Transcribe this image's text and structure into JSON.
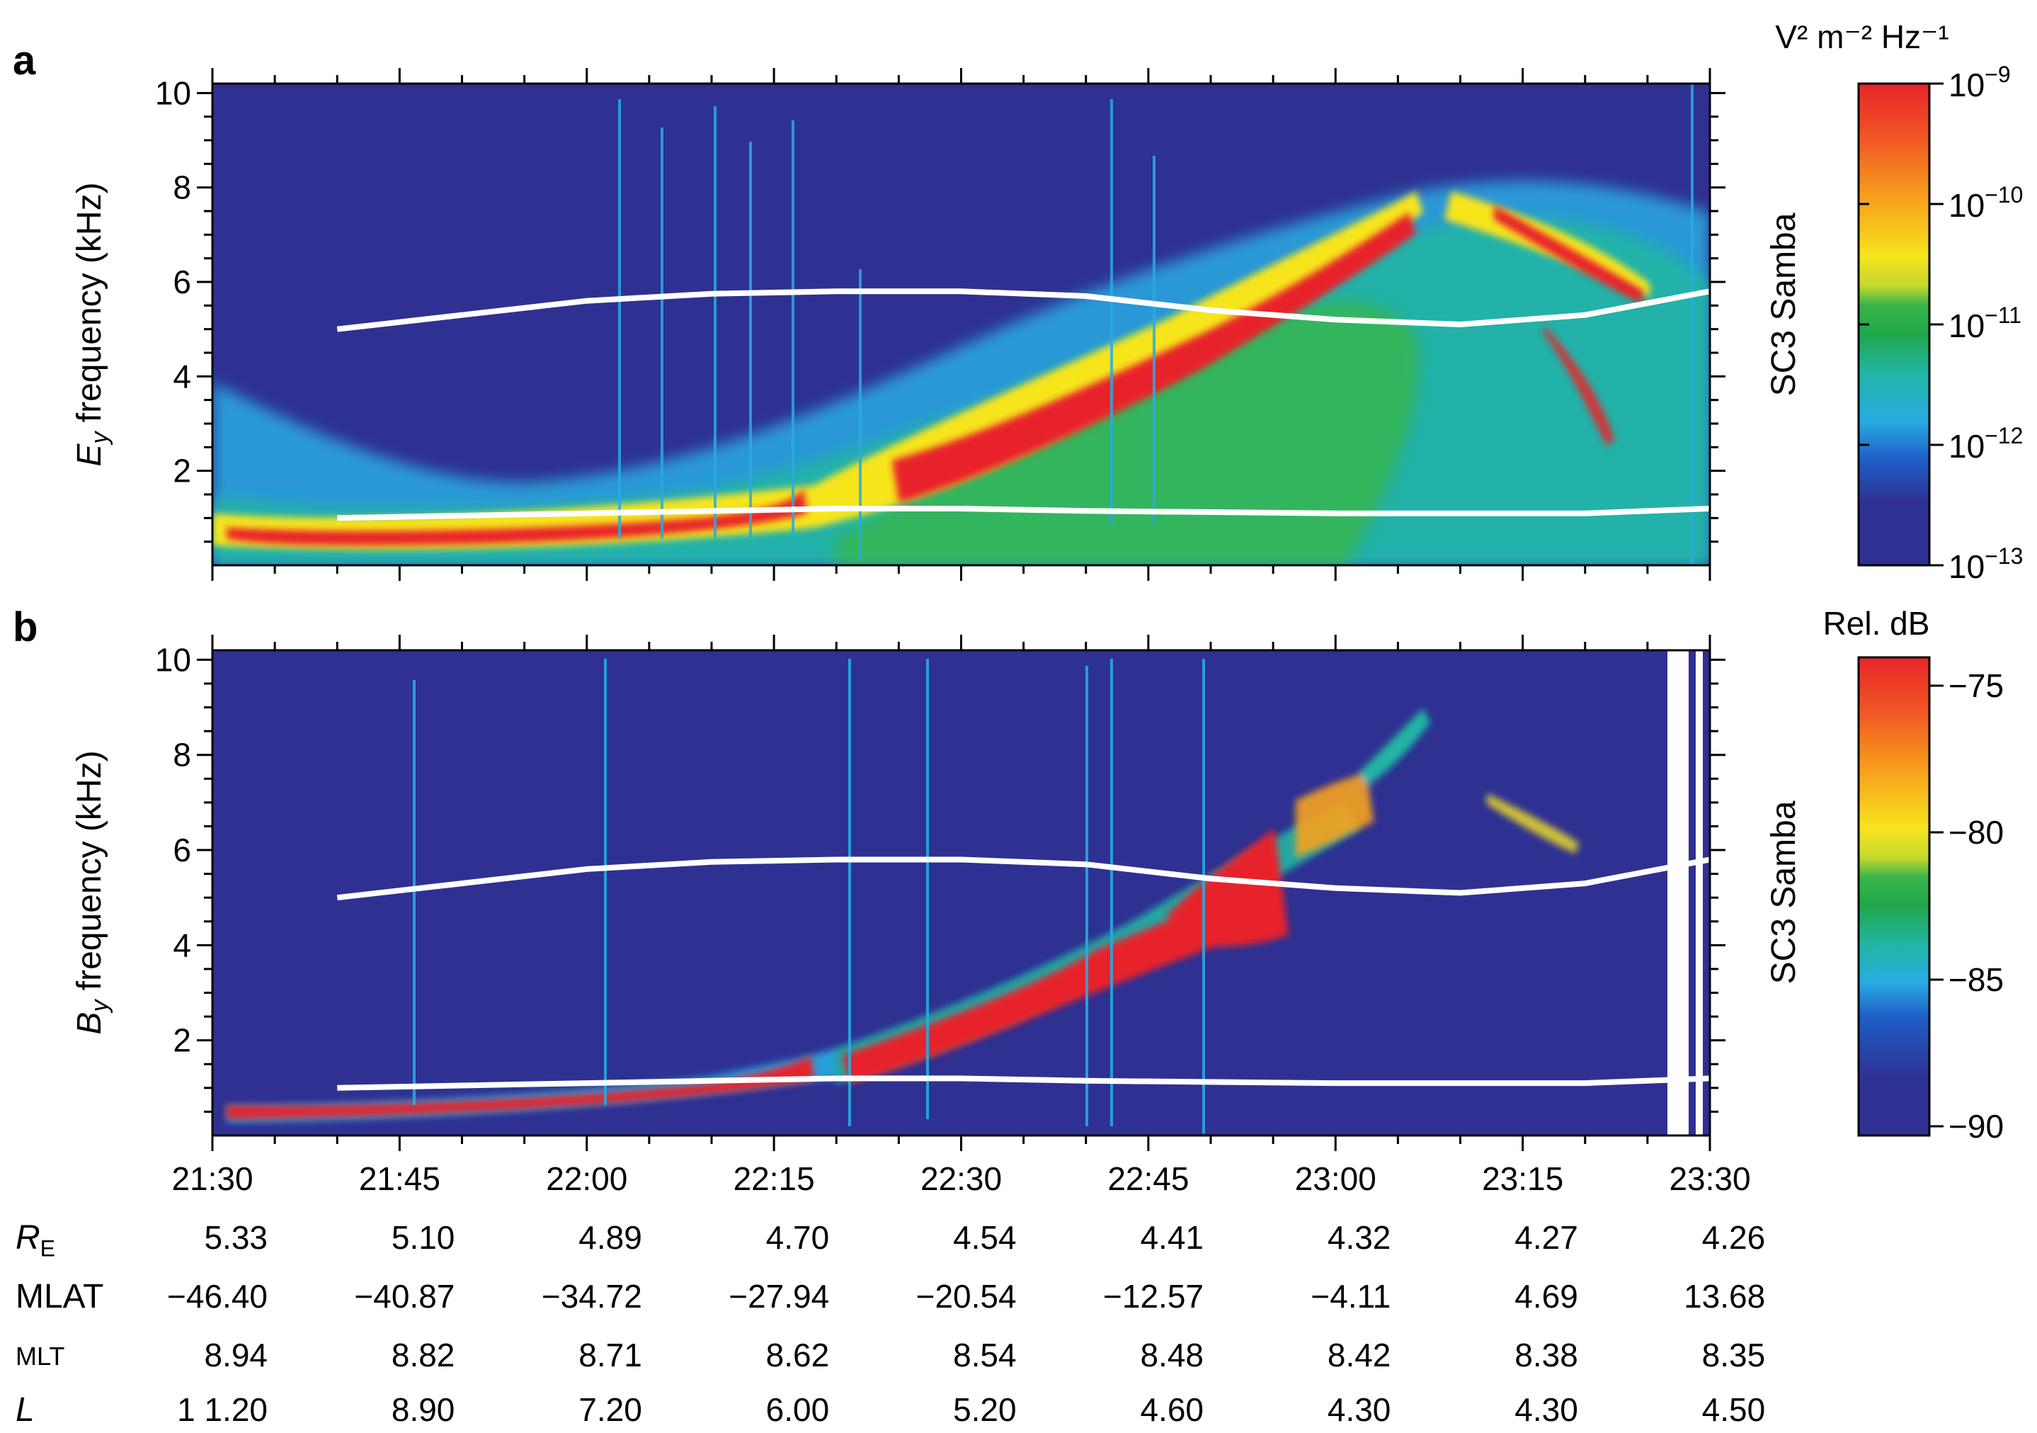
{
  "chart_data": [
    {
      "type": "heatmap",
      "panel_label": "a",
      "ylabel_var": "E",
      "ylabel_sub": "y",
      "ylabel_rest": " frequency (kHz)",
      "yticks": [
        2,
        4,
        6,
        8,
        10
      ],
      "ylim": [
        0,
        10.2
      ],
      "xlim_minutes": [
        0,
        120
      ],
      "side_label": "SC3 Samba",
      "colorbar": {
        "title": "V² m⁻² Hz⁻¹",
        "scale": "log",
        "ticks": [
          {
            "base": "10",
            "exp": "−9"
          },
          {
            "base": "10",
            "exp": "−10"
          },
          {
            "base": "10",
            "exp": "−11"
          },
          {
            "base": "10",
            "exp": "−12"
          },
          {
            "base": "10",
            "exp": "−13"
          }
        ]
      },
      "overlay_lines": [
        {
          "name": "upper",
          "x": [
            10,
            20,
            30,
            40,
            50,
            60,
            70,
            80,
            90,
            100,
            110,
            120
          ],
          "y": [
            5.0,
            5.3,
            5.6,
            5.75,
            5.8,
            5.8,
            5.7,
            5.4,
            5.2,
            5.1,
            5.3,
            5.8
          ]
        },
        {
          "name": "lower",
          "x": [
            10,
            30,
            50,
            60,
            70,
            90,
            110,
            120
          ],
          "y": [
            1.0,
            1.1,
            1.2,
            1.2,
            1.15,
            1.1,
            1.1,
            1.2
          ]
        }
      ]
    },
    {
      "type": "heatmap",
      "panel_label": "b",
      "ylabel_var": "B",
      "ylabel_sub": "y",
      "ylabel_rest": " frequency (kHz)",
      "yticks": [
        2,
        4,
        6,
        8,
        10
      ],
      "ylim": [
        0,
        10.2
      ],
      "xlim_minutes": [
        0,
        120
      ],
      "xticks": [
        "21:30",
        "21:45",
        "22:00",
        "22:15",
        "22:30",
        "22:45",
        "23:00",
        "23:15",
        "23:30"
      ],
      "side_label": "SC3 Samba",
      "colorbar": {
        "title": "Rel. dB",
        "scale": "linear",
        "ticks": [
          "−75",
          "−80",
          "−85",
          "−90"
        ]
      },
      "overlay_lines": [
        {
          "name": "upper",
          "x": [
            10,
            20,
            30,
            40,
            50,
            60,
            70,
            80,
            90,
            100,
            110,
            120
          ],
          "y": [
            5.0,
            5.3,
            5.6,
            5.75,
            5.8,
            5.8,
            5.7,
            5.4,
            5.2,
            5.1,
            5.3,
            5.8
          ]
        },
        {
          "name": "lower",
          "x": [
            10,
            30,
            50,
            60,
            70,
            90,
            110,
            120
          ],
          "y": [
            1.0,
            1.1,
            1.2,
            1.2,
            1.15,
            1.1,
            1.1,
            1.2
          ]
        }
      ]
    }
  ],
  "orbit_table": {
    "rows": [
      {
        "label": "R",
        "label_sub": "E",
        "italic": true,
        "values": [
          "5.33",
          "5.10",
          "4.89",
          "4.70",
          "4.54",
          "4.41",
          "4.32",
          "4.27",
          "4.26"
        ]
      },
      {
        "label": "MLAT",
        "label_sub": "",
        "italic": false,
        "values": [
          "−46.40",
          "−40.87",
          "−34.72",
          "−27.94",
          "−20.54",
          "−12.57",
          "−4.11",
          "4.69",
          "13.68"
        ]
      },
      {
        "label": "MLT",
        "label_sub": "",
        "italic": false,
        "small": true,
        "values": [
          "8.94",
          "8.82",
          "8.71",
          "8.62",
          "8.54",
          "8.48",
          "8.42",
          "8.38",
          "8.35"
        ]
      },
      {
        "label": "L",
        "label_sub": "",
        "italic": true,
        "values": [
          "1 1.20",
          "8.90",
          "7.20",
          "6.00",
          "5.20",
          "4.60",
          "4.30",
          "4.30",
          "4.50"
        ]
      }
    ]
  },
  "colors": {
    "background_blue": "#2e3192",
    "emission_red": "#e8242a",
    "overlay_line": "#ffffff"
  }
}
